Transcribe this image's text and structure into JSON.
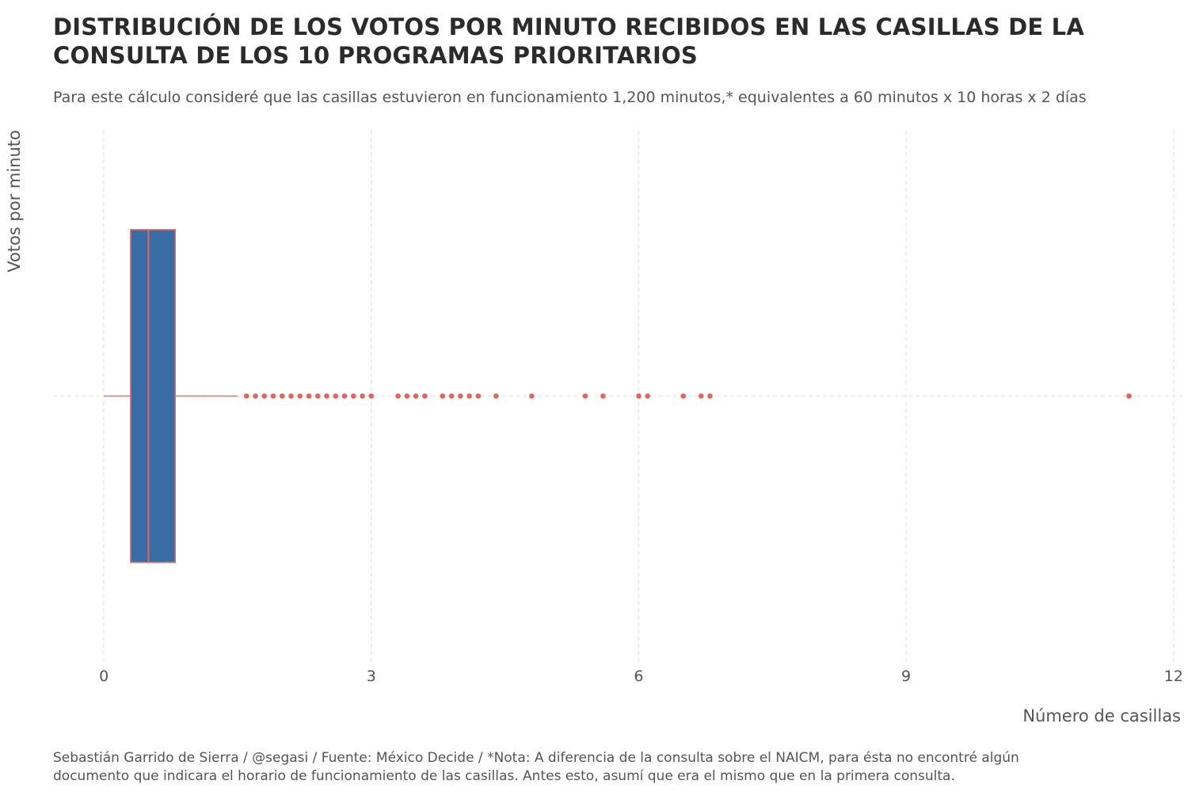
{
  "title_line1": "DISTRIBUCIÓN DE LOS VOTOS POR MINUTO RECIBIDOS EN LAS CASILLAS DE LA",
  "title_line2": "CONSULTA DE LOS 10 PROGRAMAS PRIORITARIOS",
  "subtitle": "Para este cálculo consideré que las casillas estuvieron en funcionamiento 1,200 minutos,* equivalentes a 60 minutos x 10 horas x 2 días",
  "caption_line1": "Sebastián Garrido de Sierra / @segasi / Fuente: México Decide / *Nota: A diferencia de la consulta sobre el NAICM, para ésta no encontré algún",
  "caption_line2": "documento que indicara el horario de funcionamiento de las casillas. Antes esto, asumí que era el mismo que en la primera consulta.",
  "chart_data": {
    "type": "boxplot",
    "orientation": "horizontal",
    "xlabel": "Número de casillas",
    "ylabel": "Votos por minuto",
    "xlim": [
      -0.57,
      12.1
    ],
    "x_ticks": [
      0,
      3,
      6,
      9,
      12
    ],
    "grid": true,
    "colors": {
      "box_fill": "#396BA5",
      "box_outline": "#E8635A",
      "grid": "#e3e3e3"
    },
    "box": {
      "whisker_low": 0,
      "q1": 0.3,
      "median": 0.5,
      "q3": 0.8,
      "whisker_high": 1.5
    },
    "outliers": [
      1.6,
      1.7,
      1.8,
      1.9,
      2.0,
      2.1,
      2.2,
      2.3,
      2.4,
      2.5,
      2.6,
      2.7,
      2.8,
      2.9,
      3.0,
      3.3,
      3.4,
      3.5,
      3.6,
      3.8,
      3.9,
      4.0,
      4.1,
      4.2,
      4.4,
      4.8,
      5.4,
      5.6,
      6.0,
      6.1,
      6.5,
      6.7,
      6.8,
      11.5
    ]
  }
}
